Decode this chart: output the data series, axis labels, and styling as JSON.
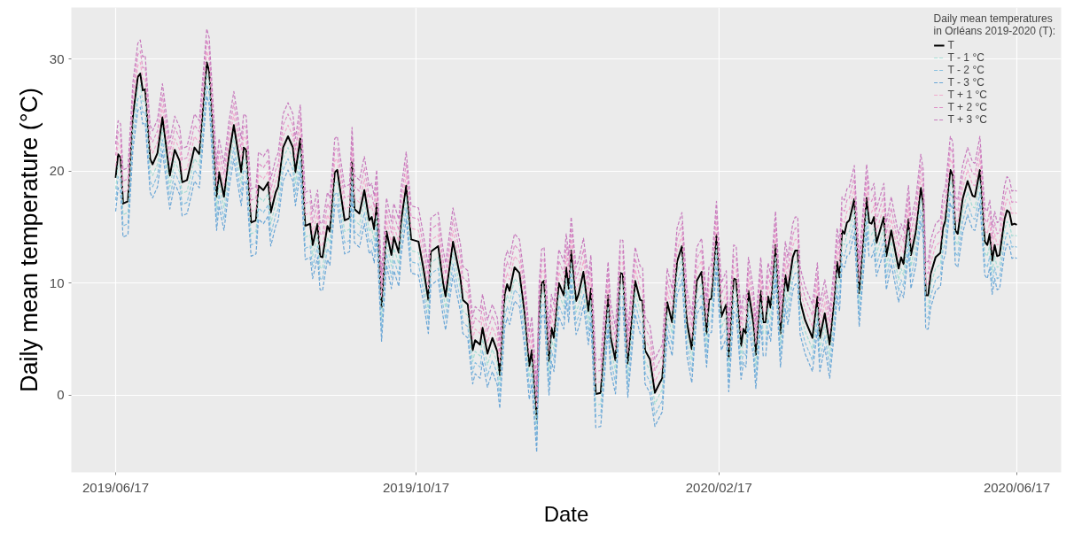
{
  "chart_data": {
    "type": "line",
    "xlabel": "Date",
    "ylabel": "Daily mean temperature (°C)",
    "legend_title": "Daily mean temperatures\nin Orléans 2019-2020 (T):",
    "x": [
      "2019-06-17",
      "2019-06-18",
      "2019-06-19",
      "2019-06-20",
      "2019-06-22",
      "2019-06-24",
      "2019-06-26",
      "2019-06-27",
      "2019-06-28",
      "2019-06-29",
      "2019-07-01",
      "2019-07-02",
      "2019-07-04",
      "2019-07-06",
      "2019-07-09",
      "2019-07-11",
      "2019-07-13",
      "2019-07-14",
      "2019-07-16",
      "2019-07-18",
      "2019-07-19",
      "2019-07-21",
      "2019-07-24",
      "2019-07-25",
      "2019-07-28",
      "2019-07-29",
      "2019-07-31",
      "2019-08-02",
      "2019-08-04",
      "2019-08-07",
      "2019-08-08",
      "2019-08-09",
      "2019-08-11",
      "2019-08-13",
      "2019-08-14",
      "2019-08-16",
      "2019-08-18",
      "2019-08-19",
      "2019-08-21",
      "2019-08-22",
      "2019-08-24",
      "2019-08-26",
      "2019-08-28",
      "2019-08-29",
      "2019-08-31",
      "2019-09-02",
      "2019-09-04",
      "2019-09-05",
      "2019-09-07",
      "2019-09-08",
      "2019-09-09",
      "2019-09-11",
      "2019-09-12",
      "2019-09-14",
      "2019-09-15",
      "2019-09-18",
      "2019-09-20",
      "2019-09-21",
      "2019-09-22",
      "2019-09-24",
      "2019-09-26",
      "2019-09-28",
      "2019-09-29",
      "2019-09-30",
      "2019-10-01",
      "2019-10-03",
      "2019-10-05",
      "2019-10-07",
      "2019-10-08",
      "2019-10-10",
      "2019-10-11",
      "2019-10-13",
      "2019-10-15",
      "2019-10-18",
      "2019-10-20",
      "2019-10-22",
      "2019-10-23",
      "2019-10-26",
      "2019-10-28",
      "2019-10-29",
      "2019-11-01",
      "2019-11-04",
      "2019-11-05",
      "2019-11-07",
      "2019-11-09",
      "2019-11-10",
      "2019-11-12",
      "2019-11-13",
      "2019-11-15",
      "2019-11-17",
      "2019-11-19",
      "2019-11-20",
      "2019-11-22",
      "2019-11-23",
      "2019-11-24",
      "2019-11-26",
      "2019-11-28",
      "2019-11-30",
      "2019-12-02",
      "2019-12-03",
      "2019-12-05",
      "2019-12-06",
      "2019-12-07",
      "2019-12-08",
      "2019-12-10",
      "2019-12-11",
      "2019-12-12",
      "2019-12-14",
      "2019-12-16",
      "2019-12-17",
      "2019-12-18",
      "2019-12-19",
      "2019-12-21",
      "2019-12-22",
      "2019-12-24",
      "2019-12-26",
      "2019-12-27",
      "2019-12-29",
      "2019-12-31",
      "2020-01-03",
      "2020-01-04",
      "2020-01-06",
      "2020-01-08",
      "2020-01-09",
      "2020-01-11",
      "2020-01-14",
      "2020-01-16",
      "2020-01-17",
      "2020-01-18",
      "2020-01-20",
      "2020-01-22",
      "2020-01-24",
      "2020-01-25",
      "2020-01-27",
      "2020-01-29",
      "2020-01-31",
      "2020-02-02",
      "2020-02-04",
      "2020-02-06",
      "2020-02-08",
      "2020-02-10",
      "2020-02-12",
      "2020-02-13",
      "2020-02-14",
      "2020-02-16",
      "2020-02-18",
      "2020-02-20",
      "2020-02-21",
      "2020-02-23",
      "2020-02-24",
      "2020-02-26",
      "2020-02-27",
      "2020-02-28",
      "2020-02-29",
      "2020-03-02",
      "2020-03-03",
      "2020-03-05",
      "2020-03-06",
      "2020-03-07",
      "2020-03-08",
      "2020-03-09",
      "2020-03-11",
      "2020-03-13",
      "2020-03-15",
      "2020-03-16",
      "2020-03-18",
      "2020-03-19",
      "2020-03-20",
      "2020-03-21",
      "2020-03-23",
      "2020-03-26",
      "2020-03-28",
      "2020-03-29",
      "2020-03-31",
      "2020-04-02",
      "2020-04-04",
      "2020-04-05",
      "2020-04-06",
      "2020-04-07",
      "2020-04-08",
      "2020-04-09",
      "2020-04-10",
      "2020-04-12",
      "2020-04-14",
      "2020-04-17",
      "2020-04-18",
      "2020-04-19",
      "2020-04-20",
      "2020-04-21",
      "2020-04-24",
      "2020-04-25",
      "2020-04-27",
      "2020-04-30",
      "2020-05-01",
      "2020-05-02",
      "2020-05-04",
      "2020-05-05",
      "2020-05-07",
      "2020-05-09",
      "2020-05-10",
      "2020-05-11",
      "2020-05-12",
      "2020-05-13",
      "2020-05-15",
      "2020-05-17",
      "2020-05-18",
      "2020-05-19",
      "2020-05-21",
      "2020-05-22",
      "2020-05-23",
      "2020-05-24",
      "2020-05-26",
      "2020-05-28",
      "2020-05-30",
      "2020-05-31",
      "2020-06-02",
      "2020-06-04",
      "2020-06-05",
      "2020-06-06",
      "2020-06-07",
      "2020-06-08",
      "2020-06-09",
      "2020-06-10",
      "2020-06-12",
      "2020-06-13",
      "2020-06-14",
      "2020-06-15",
      "2020-06-16",
      "2020-06-17"
    ],
    "series": [
      {
        "name": "T",
        "color": "#000000",
        "line_style": "solid",
        "values": [
          19.4,
          21.5,
          21.2,
          17.1,
          17.3,
          24.9,
          28.4,
          28.7,
          27.2,
          27.3,
          21.1,
          20.6,
          21.6,
          24.8,
          19.6,
          21.9,
          20.9,
          19.0,
          19.2,
          21.1,
          22.1,
          21.5,
          29.7,
          28.9,
          17.7,
          19.9,
          17.7,
          21.4,
          24.1,
          19.9,
          22.1,
          21.9,
          15.4,
          15.6,
          18.7,
          18.3,
          19.0,
          16.3,
          18.1,
          18.6,
          22.1,
          23.1,
          22.1,
          19.9,
          22.9,
          15.1,
          15.3,
          13.4,
          15.3,
          12.4,
          12.3,
          15.1,
          14.6,
          19.9,
          20.1,
          15.6,
          15.8,
          20.9,
          16.6,
          16.2,
          18.3,
          15.6,
          15.9,
          14.8,
          17.1,
          7.8,
          14.6,
          12.5,
          14.1,
          12.7,
          15.6,
          18.7,
          13.9,
          13.7,
          11.3,
          8.5,
          12.8,
          13.3,
          10.0,
          8.8,
          13.7,
          10.5,
          8.5,
          8.1,
          4.0,
          4.9,
          4.5,
          6.0,
          3.7,
          5.1,
          3.9,
          1.8,
          9.0,
          9.9,
          9.3,
          11.4,
          10.9,
          7.5,
          2.6,
          4.0,
          -2.1,
          7.0,
          10.0,
          10.2,
          3.0,
          6.0,
          5.1,
          10.0,
          8.9,
          11.4,
          9.5,
          12.9,
          8.4,
          9.0,
          11.0,
          7.5,
          9.5,
          0.1,
          0.2,
          8.9,
          5.2,
          3.1,
          10.9,
          10.8,
          2.8,
          10.2,
          8.5,
          8.4,
          4.0,
          3.2,
          0.2,
          1.1,
          1.5,
          8.3,
          6.5,
          11.9,
          13.3,
          6.5,
          4.1,
          10.2,
          11.0,
          5.5,
          8.5,
          8.6,
          14.3,
          7.0,
          8.1,
          3.3,
          10.4,
          10.3,
          4.4,
          5.9,
          5.5,
          9.3,
          6.5,
          3.6,
          9.3,
          6.5,
          6.5,
          8.8,
          7.8,
          13.4,
          5.5,
          10.7,
          9.3,
          12.3,
          12.9,
          12.9,
          8.4,
          6.7,
          5.1,
          8.8,
          5.1,
          7.3,
          4.5,
          8.8,
          11.9,
          10.5,
          14.7,
          14.4,
          15.4,
          15.6,
          17.5,
          9.1,
          17.6,
          15.4,
          15.3,
          15.9,
          13.6,
          15.9,
          12.4,
          14.7,
          11.3,
          12.3,
          11.7,
          15.7,
          12.5,
          14.6,
          18.5,
          17.1,
          8.9,
          8.9,
          10.8,
          12.3,
          12.7,
          14.9,
          15.6,
          20.1,
          19.6,
          14.7,
          14.4,
          17.5,
          19.1,
          17.8,
          17.7,
          20.1,
          13.7,
          13.4,
          14.4,
          12.0,
          13.4,
          12.4,
          12.5,
          15.7,
          16.5,
          16.3,
          15.2,
          15.3,
          15.2
        ]
      },
      {
        "name": "T - 1 °C",
        "color": "#a3dcd3",
        "line_style": "dashed",
        "values": [
          18.4,
          20.5,
          20.2,
          16.1,
          16.3,
          23.9,
          27.4,
          27.7,
          26.2,
          26.3,
          20.1,
          19.6,
          20.6,
          23.8,
          18.6,
          20.9,
          19.9,
          18.0,
          18.2,
          20.1,
          21.1,
          20.5,
          28.7,
          27.9,
          16.7,
          18.9,
          16.7,
          20.4,
          23.1,
          18.9,
          21.1,
          20.9,
          14.4,
          14.6,
          17.7,
          17.3,
          18.0,
          15.3,
          17.1,
          17.6,
          21.1,
          22.1,
          21.1,
          18.9,
          21.9,
          14.1,
          14.3,
          12.4,
          14.3,
          11.4,
          11.3,
          14.1,
          13.6,
          18.9,
          19.1,
          14.6,
          14.8,
          19.9,
          15.6,
          15.2,
          17.3,
          14.6,
          14.9,
          13.8,
          16.1,
          6.8,
          13.6,
          11.5,
          13.1,
          11.7,
          14.6,
          17.7,
          12.9,
          12.7,
          10.3,
          7.5,
          11.8,
          12.3,
          9.0,
          7.8,
          12.7,
          9.5,
          7.5,
          7.1,
          3.0,
          3.9,
          3.5,
          5.0,
          2.7,
          4.1,
          2.9,
          0.8,
          8.0,
          8.9,
          8.3,
          10.4,
          9.9,
          6.5,
          1.6,
          3.0,
          -3.1,
          6.0,
          9.0,
          9.2,
          2.0,
          5.0,
          4.1,
          9.0,
          7.9,
          10.4,
          8.5,
          11.9,
          7.4,
          8.0,
          10.0,
          6.5,
          8.5,
          -0.9,
          -0.8,
          7.9,
          4.2,
          2.1,
          9.9,
          9.8,
          1.8,
          9.2,
          7.5,
          7.4,
          3.0,
          2.2,
          -0.8,
          0.1,
          0.5,
          7.3,
          5.5,
          10.9,
          12.3,
          5.5,
          3.1,
          9.2,
          10.0,
          4.5,
          7.5,
          7.6,
          13.3,
          6.0,
          7.1,
          2.3,
          9.4,
          9.3,
          3.4,
          4.9,
          4.5,
          8.3,
          5.5,
          2.6,
          8.3,
          5.5,
          5.5,
          7.8,
          6.8,
          12.4,
          4.5,
          9.7,
          8.3,
          11.3,
          11.9,
          11.9,
          7.4,
          5.7,
          4.1,
          7.8,
          4.1,
          6.3,
          3.5,
          7.8,
          10.9,
          9.5,
          13.7,
          13.4,
          14.4,
          14.6,
          16.5,
          8.1,
          16.6,
          14.4,
          14.3,
          14.9,
          12.6,
          14.9,
          11.4,
          13.7,
          10.3,
          11.3,
          10.7,
          14.7,
          11.5,
          13.6,
          17.5,
          16.1,
          7.9,
          7.9,
          9.8,
          11.3,
          11.7,
          13.9,
          14.6,
          19.1,
          18.6,
          13.7,
          13.4,
          16.5,
          18.1,
          16.8,
          16.7,
          19.1,
          12.7,
          12.4,
          13.4,
          11.0,
          12.4,
          11.4,
          11.5,
          14.7,
          15.5,
          15.3,
          14.2,
          14.3,
          14.2
        ]
      },
      {
        "name": "T - 2 °C",
        "color": "#86bfdf",
        "line_style": "dashed",
        "values": [
          17.4,
          19.5,
          19.2,
          15.1,
          15.3,
          22.9,
          26.4,
          26.7,
          25.2,
          25.3,
          19.1,
          18.6,
          19.6,
          22.8,
          17.6,
          19.9,
          18.9,
          17.0,
          17.2,
          19.1,
          20.1,
          19.5,
          27.7,
          26.9,
          15.7,
          17.9,
          15.7,
          19.4,
          22.1,
          17.9,
          20.1,
          19.9,
          13.4,
          13.6,
          16.7,
          16.3,
          17.0,
          14.3,
          16.1,
          16.6,
          20.1,
          21.1,
          20.1,
          17.9,
          20.9,
          13.1,
          13.3,
          11.4,
          13.3,
          10.4,
          10.3,
          13.1,
          12.6,
          17.9,
          18.1,
          13.6,
          13.8,
          18.9,
          14.6,
          14.2,
          16.3,
          13.6,
          13.9,
          12.8,
          15.1,
          5.8,
          12.6,
          10.5,
          12.1,
          10.7,
          13.6,
          16.7,
          11.9,
          11.7,
          9.3,
          6.5,
          10.8,
          11.3,
          8.0,
          6.8,
          11.7,
          8.5,
          6.5,
          6.1,
          2.0,
          2.9,
          2.5,
          4.0,
          1.7,
          3.1,
          1.9,
          -0.2,
          7.0,
          7.9,
          7.3,
          9.4,
          8.9,
          5.5,
          0.6,
          2.0,
          -4.1,
          5.0,
          8.0,
          8.2,
          1.0,
          4.0,
          3.1,
          8.0,
          6.9,
          9.4,
          7.5,
          10.9,
          6.4,
          7.0,
          9.0,
          5.5,
          7.5,
          -1.9,
          -1.8,
          6.9,
          3.2,
          1.1,
          8.9,
          8.8,
          0.8,
          8.2,
          6.5,
          6.4,
          2.0,
          1.2,
          -1.8,
          -0.9,
          -0.5,
          6.3,
          4.5,
          9.9,
          11.3,
          4.5,
          2.1,
          8.2,
          9.0,
          3.5,
          6.5,
          6.6,
          12.3,
          5.0,
          6.1,
          1.3,
          8.4,
          8.3,
          2.4,
          3.9,
          3.5,
          7.3,
          4.5,
          1.6,
          7.3,
          4.5,
          4.5,
          6.8,
          5.8,
          11.4,
          3.5,
          8.7,
          7.3,
          10.3,
          10.9,
          10.9,
          6.4,
          4.7,
          3.1,
          6.8,
          3.1,
          5.3,
          2.5,
          6.8,
          9.9,
          8.5,
          12.7,
          12.4,
          13.4,
          13.6,
          15.5,
          7.1,
          15.6,
          13.4,
          13.3,
          13.9,
          11.6,
          13.9,
          10.4,
          12.7,
          9.3,
          10.3,
          9.7,
          13.7,
          10.5,
          12.6,
          16.5,
          15.1,
          6.9,
          6.9,
          8.8,
          10.3,
          10.7,
          12.9,
          13.6,
          18.1,
          17.6,
          12.7,
          12.4,
          15.5,
          17.1,
          15.8,
          15.7,
          18.1,
          11.7,
          11.4,
          12.4,
          10.0,
          11.4,
          10.4,
          10.5,
          13.7,
          14.5,
          14.3,
          13.2,
          13.3,
          13.2
        ]
      },
      {
        "name": "T - 3 °C",
        "color": "#6aa6d6",
        "line_style": "dashed",
        "values": [
          16.4,
          18.5,
          18.2,
          14.1,
          14.3,
          21.9,
          25.4,
          25.7,
          24.2,
          24.3,
          18.1,
          17.6,
          18.6,
          21.8,
          16.6,
          18.9,
          17.9,
          16.0,
          16.2,
          18.1,
          19.1,
          18.5,
          26.7,
          25.9,
          14.7,
          16.9,
          14.7,
          18.4,
          21.1,
          16.9,
          19.1,
          18.9,
          12.4,
          12.6,
          15.7,
          15.3,
          16.0,
          13.3,
          15.1,
          15.6,
          19.1,
          20.1,
          19.1,
          16.9,
          19.9,
          12.1,
          12.3,
          10.4,
          12.3,
          9.4,
          9.3,
          12.1,
          11.6,
          16.9,
          17.1,
          12.6,
          12.8,
          17.9,
          13.6,
          13.2,
          15.3,
          12.6,
          12.9,
          11.8,
          14.1,
          4.8,
          11.6,
          9.5,
          11.1,
          9.7,
          12.6,
          15.7,
          10.9,
          10.7,
          8.3,
          5.5,
          9.8,
          10.3,
          7.0,
          5.8,
          10.7,
          7.5,
          5.5,
          5.1,
          1.0,
          1.9,
          1.5,
          3.0,
          0.7,
          2.1,
          0.9,
          -1.2,
          6.0,
          6.9,
          6.3,
          8.4,
          7.9,
          4.5,
          -0.4,
          1.0,
          -5.1,
          4.0,
          7.0,
          7.2,
          0.0,
          3.0,
          2.1,
          7.0,
          5.9,
          8.4,
          6.5,
          9.9,
          5.4,
          6.0,
          8.0,
          4.5,
          6.5,
          -2.9,
          -2.8,
          5.9,
          2.2,
          0.1,
          7.9,
          7.8,
          -0.2,
          7.2,
          5.5,
          5.4,
          1.0,
          0.2,
          -2.8,
          -1.9,
          -1.5,
          5.3,
          3.5,
          8.9,
          10.3,
          3.5,
          1.1,
          7.2,
          8.0,
          2.5,
          5.5,
          5.6,
          11.3,
          4.0,
          5.1,
          0.3,
          7.4,
          7.3,
          1.4,
          2.9,
          2.5,
          6.3,
          3.5,
          0.6,
          6.3,
          3.5,
          3.5,
          5.8,
          4.8,
          10.4,
          2.5,
          7.7,
          6.3,
          9.3,
          9.9,
          9.9,
          5.4,
          3.7,
          2.1,
          5.8,
          2.1,
          4.3,
          1.5,
          5.8,
          8.9,
          7.5,
          11.7,
          11.4,
          12.4,
          12.6,
          14.5,
          6.1,
          14.6,
          12.4,
          12.3,
          12.9,
          10.6,
          12.9,
          9.4,
          11.7,
          8.3,
          9.3,
          8.7,
          12.7,
          9.5,
          11.6,
          15.5,
          14.1,
          5.9,
          5.9,
          7.8,
          9.3,
          9.7,
          11.9,
          12.6,
          17.1,
          16.6,
          11.7,
          11.4,
          14.5,
          16.1,
          14.8,
          14.7,
          17.1,
          10.7,
          10.4,
          11.4,
          9.0,
          10.4,
          9.4,
          9.5,
          12.7,
          13.5,
          13.3,
          12.2,
          12.3,
          12.2
        ]
      },
      {
        "name": "T + 1 °C",
        "color": "#f2a9cc",
        "line_style": "dashed",
        "values": [
          20.4,
          22.5,
          22.2,
          18.1,
          18.3,
          25.9,
          29.4,
          29.7,
          28.2,
          28.3,
          22.1,
          21.6,
          22.6,
          25.8,
          20.6,
          22.9,
          21.9,
          20.0,
          20.2,
          22.1,
          23.1,
          22.5,
          30.7,
          29.9,
          18.7,
          20.9,
          18.7,
          22.4,
          25.1,
          20.9,
          23.1,
          22.9,
          16.4,
          16.6,
          19.7,
          19.3,
          20.0,
          17.3,
          19.1,
          19.6,
          23.1,
          24.1,
          23.1,
          20.9,
          23.9,
          16.1,
          16.3,
          14.4,
          16.3,
          13.4,
          13.3,
          16.1,
          15.6,
          20.9,
          21.1,
          16.6,
          16.8,
          21.9,
          17.6,
          17.2,
          19.3,
          16.6,
          16.9,
          15.8,
          18.1,
          8.8,
          15.6,
          13.5,
          15.1,
          13.7,
          16.6,
          19.7,
          14.9,
          14.7,
          12.3,
          9.5,
          13.8,
          14.3,
          11.0,
          9.8,
          14.7,
          11.5,
          9.5,
          9.1,
          5.0,
          5.9,
          5.5,
          7.0,
          4.7,
          6.1,
          4.9,
          2.8,
          10.0,
          10.9,
          10.3,
          12.4,
          11.9,
          8.5,
          3.6,
          5.0,
          -1.1,
          8.0,
          11.0,
          11.2,
          4.0,
          7.0,
          6.1,
          11.0,
          9.9,
          12.4,
          10.5,
          13.9,
          9.4,
          10.0,
          12.0,
          8.5,
          10.5,
          1.1,
          1.2,
          9.9,
          6.2,
          4.1,
          11.9,
          11.8,
          3.8,
          11.2,
          9.5,
          9.4,
          5.0,
          4.2,
          1.2,
          2.1,
          2.5,
          9.3,
          7.5,
          12.9,
          14.3,
          7.5,
          5.1,
          11.2,
          12.0,
          6.5,
          9.5,
          9.6,
          15.3,
          8.0,
          9.1,
          4.3,
          11.4,
          11.3,
          5.4,
          6.9,
          6.5,
          10.3,
          7.5,
          4.6,
          10.3,
          7.5,
          7.5,
          9.8,
          8.8,
          14.4,
          6.5,
          11.7,
          10.3,
          13.3,
          13.9,
          13.9,
          9.4,
          7.7,
          6.1,
          9.8,
          6.1,
          8.3,
          5.5,
          9.8,
          12.9,
          11.5,
          15.7,
          15.4,
          16.4,
          16.6,
          18.5,
          10.1,
          18.6,
          16.4,
          16.3,
          16.9,
          14.6,
          16.9,
          13.4,
          15.7,
          12.3,
          13.3,
          12.7,
          16.7,
          13.5,
          15.6,
          19.5,
          18.1,
          9.9,
          9.9,
          11.8,
          13.3,
          13.7,
          15.9,
          16.6,
          21.1,
          20.6,
          15.7,
          15.4,
          18.5,
          20.1,
          18.8,
          18.7,
          21.1,
          14.7,
          14.4,
          15.4,
          13.0,
          14.4,
          13.4,
          13.5,
          16.7,
          17.5,
          17.3,
          16.2,
          16.3,
          16.2
        ]
      },
      {
        "name": "T + 2 °C",
        "color": "#de8fc6",
        "line_style": "dashed",
        "values": [
          21.4,
          23.5,
          23.2,
          19.1,
          19.3,
          26.9,
          30.4,
          30.7,
          29.2,
          29.3,
          23.1,
          22.6,
          23.6,
          26.8,
          21.6,
          23.9,
          22.9,
          21.0,
          21.2,
          23.1,
          24.1,
          23.5,
          31.7,
          30.9,
          19.7,
          21.9,
          19.7,
          23.4,
          26.1,
          21.9,
          24.1,
          23.9,
          17.4,
          17.6,
          20.7,
          20.3,
          21.0,
          18.3,
          20.1,
          20.6,
          24.1,
          25.1,
          24.1,
          21.9,
          24.9,
          17.1,
          17.3,
          15.4,
          17.3,
          14.4,
          14.3,
          17.1,
          16.6,
          21.9,
          22.1,
          17.6,
          17.8,
          22.9,
          18.6,
          18.2,
          20.3,
          17.6,
          17.9,
          16.8,
          19.1,
          9.8,
          16.6,
          14.5,
          16.1,
          14.7,
          17.6,
          20.7,
          15.9,
          15.7,
          13.3,
          10.5,
          14.8,
          15.3,
          12.0,
          10.8,
          15.7,
          12.5,
          10.5,
          10.1,
          6.0,
          6.9,
          6.5,
          8.0,
          5.7,
          7.1,
          5.9,
          3.8,
          11.0,
          11.9,
          11.3,
          13.4,
          12.9,
          9.5,
          4.6,
          6.0,
          -0.1,
          9.0,
          12.0,
          12.2,
          5.0,
          8.0,
          7.1,
          12.0,
          10.9,
          13.4,
          11.5,
          14.9,
          10.4,
          11.0,
          13.0,
          9.5,
          11.5,
          2.1,
          2.2,
          10.9,
          7.2,
          5.1,
          12.9,
          12.8,
          4.8,
          12.2,
          10.5,
          10.4,
          6.0,
          5.2,
          2.2,
          3.1,
          3.5,
          10.3,
          8.5,
          13.9,
          15.3,
          8.5,
          6.1,
          12.2,
          13.0,
          7.5,
          10.5,
          10.6,
          16.3,
          9.0,
          10.1,
          5.3,
          12.4,
          12.3,
          6.4,
          7.9,
          7.5,
          11.3,
          8.5,
          5.6,
          11.3,
          8.5,
          8.5,
          10.8,
          9.8,
          15.4,
          7.5,
          12.7,
          11.3,
          14.3,
          14.9,
          14.9,
          10.4,
          8.7,
          7.1,
          10.8,
          7.1,
          9.3,
          6.5,
          10.8,
          13.9,
          12.5,
          16.7,
          16.4,
          17.4,
          17.6,
          19.5,
          11.1,
          19.6,
          17.4,
          17.3,
          17.9,
          15.6,
          17.9,
          14.4,
          16.7,
          13.3,
          14.3,
          13.7,
          17.7,
          14.5,
          16.6,
          20.5,
          19.1,
          10.9,
          10.9,
          12.8,
          14.3,
          14.7,
          16.9,
          17.6,
          22.1,
          21.6,
          16.7,
          16.4,
          19.5,
          21.1,
          19.8,
          19.7,
          22.1,
          15.7,
          15.4,
          16.4,
          14.0,
          15.4,
          14.4,
          14.5,
          17.7,
          18.5,
          18.3,
          17.2,
          17.3,
          17.2
        ]
      },
      {
        "name": "T + 3 °C",
        "color": "#c77abd",
        "line_style": "dashed",
        "values": [
          22.4,
          24.5,
          24.2,
          20.1,
          20.3,
          27.9,
          31.4,
          31.7,
          30.2,
          30.3,
          24.1,
          23.6,
          24.6,
          27.8,
          22.6,
          24.9,
          23.9,
          22.0,
          22.2,
          24.1,
          25.1,
          24.5,
          32.7,
          31.9,
          20.7,
          22.9,
          20.7,
          24.4,
          27.1,
          22.9,
          25.1,
          24.9,
          18.4,
          18.6,
          21.7,
          21.3,
          22.0,
          19.3,
          21.1,
          21.6,
          25.1,
          26.1,
          25.1,
          22.9,
          25.9,
          18.1,
          18.3,
          16.4,
          18.3,
          15.4,
          15.3,
          18.1,
          17.6,
          22.9,
          23.1,
          18.6,
          18.8,
          23.9,
          19.6,
          19.2,
          21.3,
          18.6,
          18.9,
          17.8,
          20.1,
          10.8,
          17.6,
          15.5,
          17.1,
          15.7,
          18.6,
          21.7,
          16.9,
          16.7,
          14.3,
          11.5,
          15.8,
          16.3,
          13.0,
          11.8,
          16.7,
          13.5,
          11.5,
          11.1,
          7.0,
          7.9,
          7.5,
          9.0,
          6.7,
          8.1,
          6.9,
          4.8,
          12.0,
          12.9,
          12.3,
          14.4,
          13.9,
          10.5,
          5.6,
          7.0,
          0.9,
          10.0,
          13.0,
          13.2,
          6.0,
          9.0,
          8.1,
          13.0,
          11.9,
          14.4,
          12.5,
          15.9,
          11.4,
          12.0,
          14.0,
          10.5,
          12.5,
          3.1,
          3.2,
          11.9,
          8.2,
          6.1,
          13.9,
          13.8,
          5.8,
          13.2,
          11.5,
          11.4,
          7.0,
          6.2,
          3.2,
          4.1,
          4.5,
          11.3,
          9.5,
          14.9,
          16.3,
          9.5,
          7.1,
          13.2,
          14.0,
          8.5,
          11.5,
          11.6,
          17.3,
          10.0,
          11.1,
          6.3,
          13.4,
          13.3,
          7.4,
          8.9,
          8.5,
          12.3,
          9.5,
          6.6,
          12.3,
          9.5,
          9.5,
          11.8,
          10.8,
          16.4,
          8.5,
          13.7,
          12.3,
          15.3,
          15.9,
          15.9,
          11.4,
          9.7,
          8.1,
          11.8,
          8.1,
          10.3,
          7.5,
          11.8,
          14.9,
          13.5,
          17.7,
          17.4,
          18.4,
          18.6,
          20.5,
          12.1,
          20.6,
          18.4,
          18.3,
          18.9,
          16.6,
          18.9,
          15.4,
          17.7,
          14.3,
          15.3,
          14.7,
          18.7,
          15.5,
          17.6,
          21.5,
          20.1,
          11.9,
          11.9,
          13.8,
          15.3,
          15.7,
          17.9,
          18.6,
          23.1,
          22.6,
          17.7,
          17.4,
          20.5,
          22.1,
          20.8,
          20.7,
          23.1,
          16.7,
          16.4,
          17.4,
          15.0,
          16.4,
          15.4,
          15.5,
          18.7,
          19.5,
          19.3,
          18.2,
          18.3,
          18.2
        ]
      }
    ],
    "xlim": [
      "2019-05-30",
      "2020-07-05"
    ],
    "xticks": [
      {
        "value": "2019-06-17",
        "label": "2019/06/17"
      },
      {
        "value": "2019-10-17",
        "label": "2019/10/17"
      },
      {
        "value": "2020-02-17",
        "label": "2020/02/17"
      },
      {
        "value": "2020-06-17",
        "label": "2020/06/17"
      }
    ],
    "ylim": [
      -6.9,
      34.6
    ],
    "yticks": [
      0,
      10,
      20,
      30
    ],
    "grid": true,
    "legend": "top right",
    "marker": "none"
  }
}
